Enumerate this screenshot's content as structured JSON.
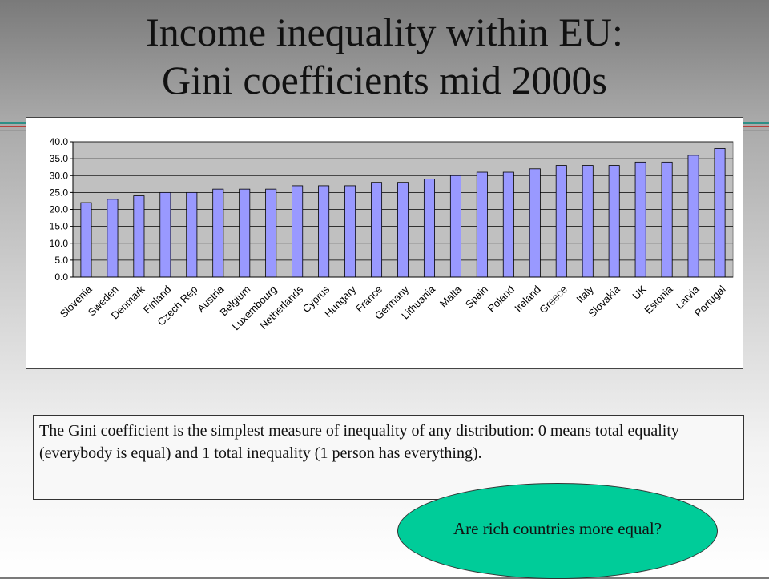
{
  "slide": {
    "title_line1": "Income inequality within EU:",
    "title_line2": "Gini coefficients mid 2000s",
    "note": "The Gini coefficient is the simplest measure of inequality of any distribution: 0 means total equality (everybody is equal) and 1 total inequality (1 person has everything).",
    "bubble_text": "Are rich countries more equal?"
  },
  "colors": {
    "bar_fill": "#9999ff",
    "plot_bg": "#c0c0c0",
    "bubble_fill": "#00cc99"
  },
  "chart_data": {
    "type": "bar",
    "title": "",
    "xlabel": "",
    "ylabel": "",
    "ylim": [
      0,
      40
    ],
    "yticks": [
      "0.0",
      "5.0",
      "10.0",
      "15.0",
      "20.0",
      "25.0",
      "30.0",
      "35.0",
      "40.0"
    ],
    "grid": true,
    "legend": "none",
    "categories": [
      "Slovenia",
      "Sweden",
      "Denmark",
      "Finland",
      "Czech Rep",
      "Austria",
      "Belgium",
      "Luxembourg",
      "Netherlands",
      "Cyprus",
      "Hungary",
      "France",
      "Germany",
      "Lithuania",
      "Malta",
      "Spain",
      "Poland",
      "Ireland",
      "Greece",
      "Italy",
      "Slovakia",
      "UK",
      "Estonia",
      "Latvia",
      "Portugal"
    ],
    "values": [
      22,
      23,
      24,
      25,
      25,
      26,
      26,
      26,
      27,
      27,
      27,
      28,
      28,
      29,
      30,
      31,
      31,
      32,
      33,
      33,
      33,
      34,
      34,
      36,
      38
    ]
  }
}
